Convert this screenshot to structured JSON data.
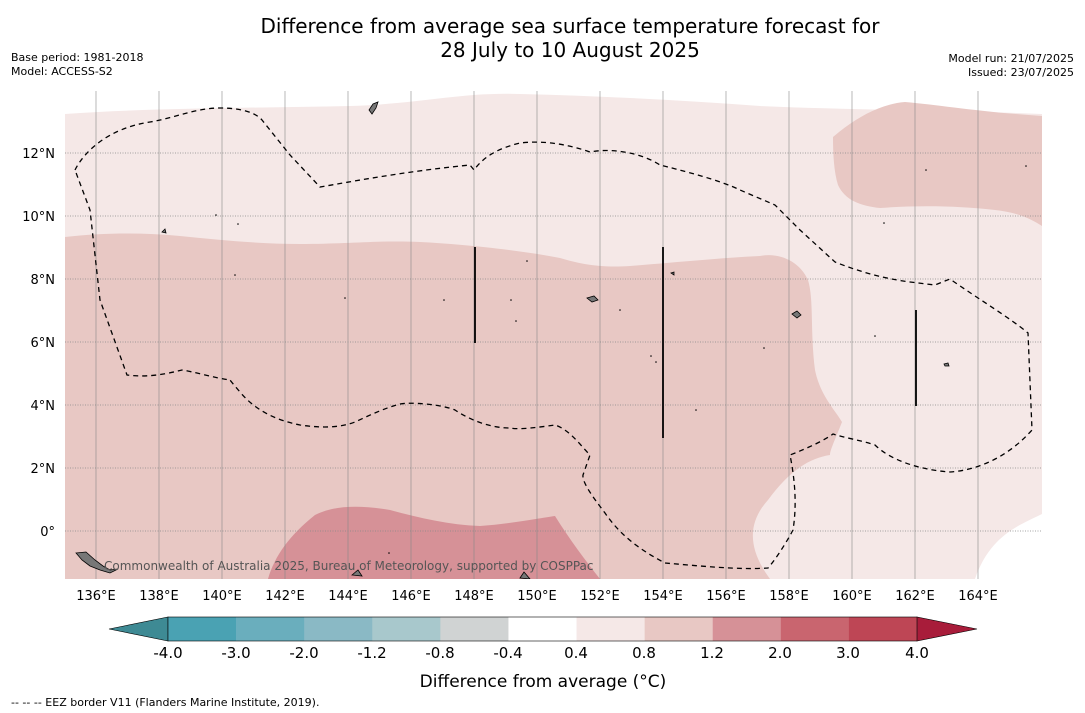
{
  "title": {
    "line1": "Difference from average sea surface temperature forecast for",
    "line2": "28 July to 10 August 2025"
  },
  "meta": {
    "base_period": "Base period: 1981-2018",
    "model": "Model: ACCESS-S2",
    "model_run": "Model run: 21/07/2025",
    "issued": "Issued: 23/07/2025"
  },
  "map": {
    "lon_range": [
      135.0,
      166.0
    ],
    "lat_range": [
      -1.5,
      14.0
    ],
    "lon_ticks": [
      "136°E",
      "138°E",
      "140°E",
      "142°E",
      "144°E",
      "146°E",
      "148°E",
      "150°E",
      "152°E",
      "154°E",
      "156°E",
      "158°E",
      "160°E",
      "162°E",
      "164°E"
    ],
    "lat_ticks": [
      "12°N",
      "10°N",
      "8°N",
      "6°N",
      "4°N",
      "2°N",
      "0°"
    ],
    "gridlines": true,
    "copyright": "Commonwealth of Australia 2025, Bureau of Meteorology, supported by COSPPac"
  },
  "colorbar": {
    "ticks": [
      "-4.0",
      "-3.0",
      "-2.0",
      "-1.2",
      "-0.8",
      "-0.4",
      "0.4",
      "0.8",
      "1.2",
      "2.0",
      "3.0",
      "4.0"
    ],
    "colors": [
      "#4aa2b3",
      "#6aaebd",
      "#8ab9c5",
      "#a8c8cc",
      "#d0d3d3",
      "#ffffff",
      "#f5e8e7",
      "#e8c8c4",
      "#d69197",
      "#c9656f",
      "#be4655"
    ],
    "min_color": "#3e8a94",
    "max_color": "#a81c3a",
    "label": "Difference from average (°C)"
  },
  "footer": {
    "eez_note": "--  --  -- EEZ border V11 (Flanders Marine Institute, 2019)."
  }
}
